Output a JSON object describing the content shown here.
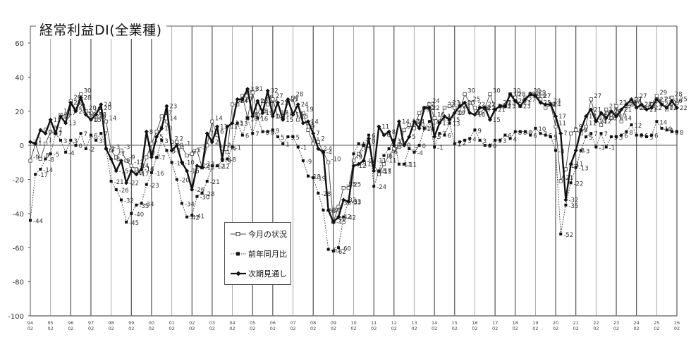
{
  "chart_data": {
    "type": "line",
    "title": "経常利益DI(全業種)",
    "xlabel": "",
    "ylabel": "",
    "ylim": [
      -100,
      60
    ],
    "yticks": [
      60,
      40,
      20,
      0,
      -20,
      -40,
      -60,
      -80,
      -100
    ],
    "xtick_years": [
      "94",
      "95",
      "96",
      "97",
      "98",
      "99",
      "00",
      "01",
      "02",
      "03",
      "04",
      "05",
      "06",
      "07",
      "08",
      "09",
      "10",
      "11",
      "12",
      "13",
      "14",
      "15",
      "16",
      "17",
      "18",
      "19",
      "20",
      "21",
      "22",
      "23",
      "24",
      "25",
      "26"
    ],
    "xtick_sub": "02",
    "grid": "vertical-yearly",
    "legend_position": "inside-bottom-center",
    "x_start": "1994Q1",
    "frequency": "quarterly",
    "series": [
      {
        "name": "今月の状況",
        "marker": "open-square",
        "style": "thin-solid",
        "values": [
          -9,
          1,
          -8,
          1,
          8,
          7,
          18,
          17,
          26,
          21,
          30,
          20,
          19,
          15,
          20,
          14,
          -3,
          -7,
          -3,
          -9,
          -12,
          -14,
          -16,
          -7,
          1,
          8,
          17,
          14,
          2,
          2,
          -1,
          -6,
          -5,
          -3,
          -13,
          0,
          14,
          6,
          -2,
          -4,
          24,
          24,
          29,
          16,
          31,
          18,
          26,
          24,
          27,
          17,
          16,
          25,
          28,
          15,
          19,
          9,
          1,
          2,
          -4,
          -10,
          -45,
          -36,
          -25,
          -25,
          -9,
          -5,
          0,
          0,
          -11,
          -17,
          -11,
          -6,
          -2,
          -1,
          9,
          12,
          10,
          19,
          22,
          24,
          16,
          14,
          22,
          23,
          22,
          19,
          30,
          25,
          22,
          19,
          22,
          30,
          21,
          23,
          23,
          30,
          28,
          23,
          28,
          30,
          29,
          27,
          22,
          24,
          11,
          -21,
          -14,
          7,
          9,
          7,
          11,
          27,
          15,
          12,
          21,
          16,
          23,
          14,
          23,
          24,
          27,
          22,
          22,
          24,
          29,
          25,
          21,
          28,
          25
        ]
      },
      {
        "name": "前年同月比",
        "marker": "filled-square",
        "style": "thin-dotted",
        "values": [
          -44,
          -17,
          -14,
          -8,
          -5,
          7,
          3,
          -4,
          3,
          0,
          7,
          -2,
          6,
          3,
          7,
          -2,
          -21,
          -26,
          -32,
          -45,
          -40,
          -35,
          -34,
          -23,
          -16,
          -7,
          3,
          -3,
          -10,
          -20,
          -34,
          -42,
          -41,
          -30,
          -28,
          -21,
          -12,
          -12,
          -9,
          -8,
          -1,
          13,
          6,
          16,
          7,
          16,
          8,
          8,
          9,
          5,
          1,
          5,
          5,
          -1,
          -9,
          -18,
          -19,
          -28,
          -38,
          -61,
          -62,
          -60,
          -42,
          -33,
          -5,
          1,
          0,
          6,
          -24,
          -15,
          -6,
          -2,
          3,
          -11,
          -11,
          -2,
          -4,
          0,
          10,
          14,
          -1,
          7,
          6,
          13,
          1,
          2,
          3,
          4,
          9,
          3,
          0,
          0,
          3,
          3,
          6,
          4,
          8,
          8,
          8,
          6,
          10,
          7,
          6,
          5,
          -3,
          -52,
          -35,
          -22,
          -13,
          -3,
          5,
          7,
          -1,
          7,
          -1,
          5,
          5,
          6,
          8,
          12,
          6,
          6,
          5,
          6,
          14,
          10,
          9,
          8,
          8
        ]
      },
      {
        "name": "次期見通し",
        "marker": "filled-diamond",
        "style": "bold-solid",
        "values": [
          2,
          1,
          9,
          7,
          15,
          7,
          17,
          13,
          25,
          20,
          28,
          18,
          15,
          18,
          24,
          -2,
          -8,
          -15,
          -9,
          -22,
          -15,
          -17,
          -14,
          8,
          -7,
          5,
          10,
          23,
          -3,
          0,
          -10,
          -15,
          -26,
          -12,
          -13,
          7,
          2,
          11,
          -8,
          11,
          13,
          27,
          27,
          33,
          17,
          26,
          19,
          32,
          17,
          25,
          15,
          27,
          18,
          24,
          13,
          14,
          7,
          -2,
          -4,
          -38,
          -45,
          -42,
          -32,
          -33,
          -12,
          -11,
          -9,
          4,
          -15,
          11,
          6,
          8,
          0,
          14,
          0,
          5,
          14,
          10,
          22,
          22,
          5,
          13,
          17,
          15,
          19,
          23,
          25,
          19,
          18,
          22,
          22,
          15,
          21,
          23,
          23,
          30,
          26,
          23,
          27,
          30,
          29,
          25,
          24,
          24,
          17,
          7,
          -32,
          -11,
          -3,
          9,
          17,
          21,
          14,
          19,
          16,
          20,
          17,
          21,
          24,
          27,
          22,
          24,
          21,
          22,
          27,
          24,
          22,
          26,
          22
        ]
      }
    ]
  },
  "legend": {
    "items": [
      {
        "label": "今月の状況"
      },
      {
        "label": "前年同月比"
      },
      {
        "label": "次期見通し"
      }
    ]
  }
}
